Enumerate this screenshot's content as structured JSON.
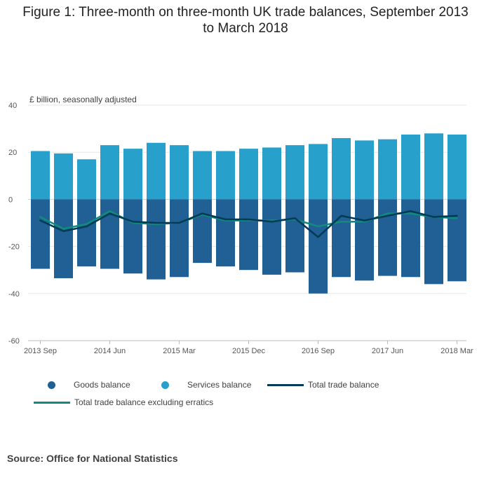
{
  "title": {
    "line1": "Figure 1: Three-month on three-month UK trade balances, September 2013",
    "line2": "to March 2018"
  },
  "chart_data": {
    "type": "bar",
    "subtype": "stacked bar with line overlays",
    "ylabel": "£ billion, seasonally adjusted",
    "ylim": [
      -60,
      40
    ],
    "yticks": [
      40,
      20,
      0,
      -20,
      -40,
      -60
    ],
    "grid": true,
    "categories": [
      "2013 Sep",
      "2013 Dec",
      "2014 Mar",
      "2014 Jun",
      "2014 Sep",
      "2014 Dec",
      "2015 Mar",
      "2015 Jun",
      "2015 Sep",
      "2015 Dec",
      "2016 Mar",
      "2016 Jun",
      "2016 Sep",
      "2016 Dec",
      "2017 Mar",
      "2017 Jun",
      "2017 Sep",
      "2017 Dec",
      "2018 Mar"
    ],
    "xtick_labels": [
      {
        "index": 0,
        "label": "2013 Sep"
      },
      {
        "index": 3,
        "label": "2014 Jun"
      },
      {
        "index": 6,
        "label": "2015 Mar"
      },
      {
        "index": 9,
        "label": "2015 Dec"
      },
      {
        "index": 12,
        "label": "2016 Sep"
      },
      {
        "index": 15,
        "label": "2017 Jun"
      },
      {
        "index": 18,
        "label": "2018 Mar"
      }
    ],
    "series": [
      {
        "name": "Goods balance",
        "kind": "bar",
        "color": "#206095",
        "values": [
          -29.5,
          -33.5,
          -28.5,
          -29.5,
          -31.5,
          -34,
          -33,
          -27,
          -28.5,
          -30,
          -32,
          -31,
          -40,
          -33,
          -34.5,
          -32.5,
          -33,
          -36,
          -34.8
        ]
      },
      {
        "name": "Services balance",
        "kind": "bar",
        "color": "#27a0cc",
        "values": [
          20.5,
          19.5,
          17,
          23,
          21.5,
          24,
          23,
          20.5,
          20.5,
          21.5,
          22,
          23,
          23.5,
          26,
          25,
          25.5,
          27.5,
          28,
          27.5
        ]
      },
      {
        "name": "Total trade balance",
        "kind": "line",
        "color": "#003c57",
        "values": [
          -9,
          -13.5,
          -11.5,
          -6,
          -9.5,
          -10,
          -10,
          -6,
          -8.5,
          -8.5,
          -9.5,
          -8,
          -16,
          -7,
          -9,
          -7,
          -5,
          -7.5,
          -7
        ]
      },
      {
        "name": "Total trade balance excluding erratics",
        "kind": "line",
        "color": "#118c7b",
        "values": [
          -7.5,
          -12.5,
          -10.5,
          -5,
          -10,
          -10.5,
          -10,
          -6.5,
          -9,
          -9,
          -9,
          -8.5,
          -11.5,
          -9.5,
          -9.5,
          -6,
          -6,
          -7.5,
          -8
        ]
      }
    ],
    "legend_position": "bottom"
  },
  "source": "Source: Office for National Statistics"
}
